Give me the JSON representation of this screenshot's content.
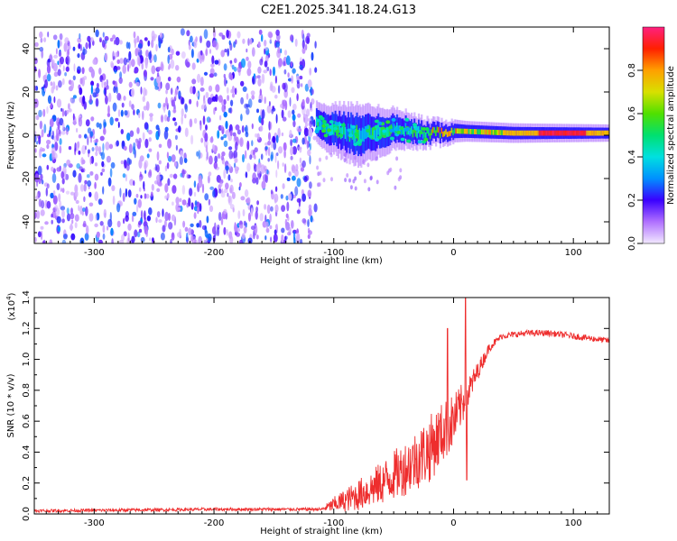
{
  "figure_title": "C2E1.2025.341.18.24.G13",
  "colors": {
    "snr_line": "#ee2d2d",
    "axis": "#000000"
  },
  "chart_data": [
    {
      "type": "heatmap",
      "name": "spectrogram",
      "title": "C2E1.2025.341.18.24.G13",
      "xlabel": "Height of straight line (km)",
      "ylabel": "Frequency (Hz)",
      "xlim": [
        -350,
        130
      ],
      "ylim": [
        -50,
        50
      ],
      "xticks": [
        -300,
        -200,
        -100,
        0,
        100
      ],
      "yticks": [
        -40,
        -20,
        0,
        20,
        40
      ],
      "xtick_labels": [
        "-300",
        "-200",
        "-100",
        "0",
        "100"
      ],
      "ytick_labels": [
        "-40",
        "-20",
        "0",
        "20",
        "40"
      ],
      "noise_region": {
        "x_from": -350,
        "x_to": -115,
        "y_from": -50,
        "y_to": 48
      },
      "signal_band": {
        "x_from": -115,
        "x_to": 130,
        "center_hz": [
          [
            -115,
            5
          ],
          [
            -80,
            0
          ],
          [
            -50,
            3
          ],
          [
            -20,
            1
          ],
          [
            0,
            2
          ],
          [
            50,
            1
          ],
          [
            130,
            1
          ]
        ],
        "halfwidth_hz": [
          [
            -115,
            6
          ],
          [
            -80,
            9
          ],
          [
            -50,
            6
          ],
          [
            -20,
            4
          ],
          [
            10,
            3
          ],
          [
            130,
            2.5
          ]
        ]
      },
      "colorbar": {
        "label": "Normalized spectral amplitude",
        "range": [
          0,
          1
        ],
        "ticks": [
          0.0,
          0.2,
          0.4,
          0.6,
          0.8
        ],
        "tick_labels": [
          "0.0",
          "0.2",
          "0.4",
          "0.6",
          "0.8"
        ]
      }
    },
    {
      "type": "line",
      "name": "snr",
      "xlabel": "Height of straight line (km)",
      "ylabel": "SNR (10 * v/v)",
      "y_multiplier_label": "(x10",
      "y_multiplier_exponent": "4",
      "y_multiplier_close": ")",
      "xlim": [
        -350,
        130
      ],
      "ylim": [
        0,
        1.4
      ],
      "xticks": [
        -300,
        -200,
        -100,
        0,
        100
      ],
      "yticks": [
        0.0,
        0.2,
        0.4,
        0.6,
        0.8,
        1.0,
        1.2,
        1.4
      ],
      "xtick_labels": [
        "-300",
        "-200",
        "-100",
        "0",
        "100"
      ],
      "ytick_labels": [
        "0.0",
        "0.2",
        "0.4",
        "0.6",
        "0.8",
        "1.0",
        "1.2",
        "1.4"
      ],
      "envelope": {
        "x": [
          -350,
          -200,
          -110,
          -100,
          -80,
          -60,
          -40,
          -20,
          -10,
          0,
          10,
          20,
          30,
          40,
          60,
          80,
          100,
          120,
          130
        ],
        "mean": [
          0.02,
          0.03,
          0.03,
          0.06,
          0.12,
          0.2,
          0.3,
          0.42,
          0.52,
          0.6,
          0.75,
          0.92,
          1.08,
          1.15,
          1.17,
          1.17,
          1.15,
          1.13,
          1.12
        ],
        "noise": [
          0.01,
          0.01,
          0.01,
          0.05,
          0.1,
          0.14,
          0.18,
          0.22,
          0.2,
          0.18,
          0.12,
          0.06,
          0.03,
          0.02,
          0.02,
          0.02,
          0.02,
          0.02,
          0.02
        ]
      },
      "spikes": [
        {
          "x": 10,
          "y": 1.4
        },
        {
          "x": -5,
          "y": 1.2
        },
        {
          "x": 11,
          "y": 0.22
        }
      ]
    }
  ]
}
